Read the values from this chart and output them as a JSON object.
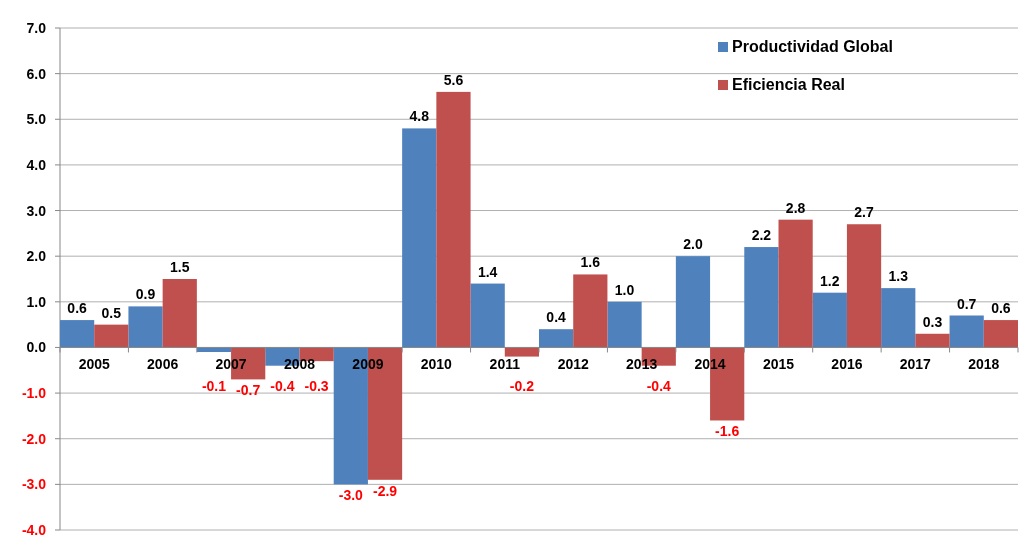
{
  "chart_data": {
    "type": "bar",
    "categories": [
      "2005",
      "2006",
      "2007",
      "2008",
      "2009",
      "2010",
      "2011",
      "2012",
      "2013",
      "2014",
      "2015",
      "2016",
      "2017",
      "2018"
    ],
    "series": [
      {
        "name": "Productividad Global",
        "color": "#4f81bd",
        "values": [
          0.6,
          0.9,
          -0.1,
          -0.4,
          -3.0,
          4.8,
          1.4,
          0.4,
          1.0,
          2.0,
          2.2,
          1.2,
          1.3,
          0.7
        ],
        "value_labels": [
          "0.6",
          "0.9",
          "-0.1",
          "-0.4",
          "-3.0",
          "4.8",
          "1.4",
          "0.4",
          "1.0",
          "2.0",
          "2.2",
          "1.2",
          "1.3",
          "0.7"
        ]
      },
      {
        "name": "Eficiencia Real",
        "color": "#c0504d",
        "values": [
          0.5,
          1.5,
          -0.7,
          -0.3,
          -2.9,
          5.6,
          -0.2,
          1.6,
          -0.4,
          -1.6,
          2.8,
          2.7,
          0.3,
          0.6
        ],
        "value_labels": [
          "0.5",
          "1.5",
          "-0.7",
          "-0.3",
          "-2.9",
          "5.6",
          "-0.2",
          "1.6",
          "-0.4",
          "-1.6",
          "2.8",
          "2.7",
          "0.3",
          "0.6"
        ]
      }
    ],
    "ylim": [
      -4,
      7
    ],
    "yticks": [
      {
        "value": -4,
        "label": "-4.0"
      },
      {
        "value": -3,
        "label": "-3.0"
      },
      {
        "value": -2,
        "label": "-2.0"
      },
      {
        "value": -1,
        "label": "-1.0"
      },
      {
        "value": 0,
        "label": "0.0"
      },
      {
        "value": 1,
        "label": "1.0"
      },
      {
        "value": 2,
        "label": "2.0"
      },
      {
        "value": 3,
        "label": "3.0"
      },
      {
        "value": 4,
        "label": "4.0"
      },
      {
        "value": 5,
        "label": "5.0"
      },
      {
        "value": 6,
        "label": "6.0"
      },
      {
        "value": 7,
        "label": "7.0"
      }
    ],
    "grid": "y",
    "legend": "top right"
  }
}
